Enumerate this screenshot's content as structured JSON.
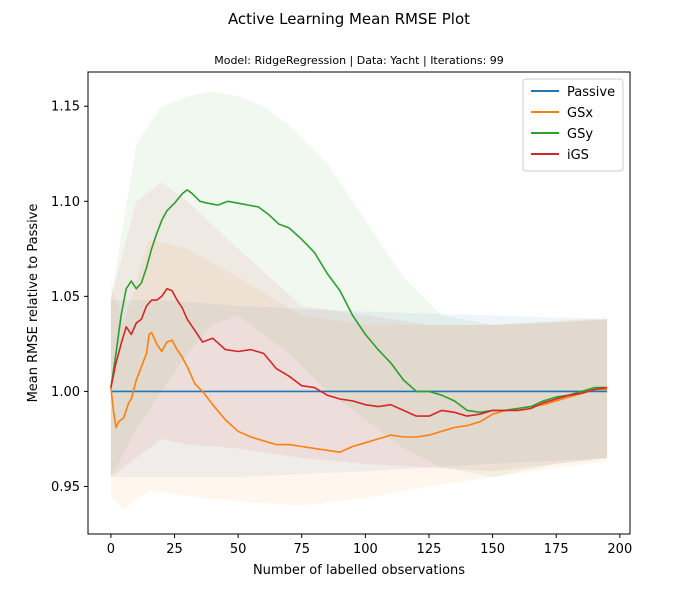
{
  "chart_data": {
    "type": "line",
    "title": "Active Learning Mean RMSE Plot",
    "subtitle": "Model: RidgeRegression |   Data: Yacht    |   Iterations: 99",
    "xlabel": "Number of labelled observations",
    "ylabel": "Mean RMSE relative to Passive",
    "xlim": [
      -9,
      204
    ],
    "ylim": [
      0.925,
      1.168
    ],
    "xticks": [
      0,
      25,
      50,
      75,
      100,
      125,
      150,
      175,
      200
    ],
    "yticks": [
      0.95,
      1.0,
      1.05,
      1.1,
      1.15
    ],
    "ytick_labels": [
      "0.95",
      "1.00",
      "1.05",
      "1.10",
      "1.15"
    ],
    "legend_position": "top-right",
    "grid": false,
    "series": [
      {
        "name": "Passive",
        "color": "#1f77b4",
        "x": [
          0,
          195
        ],
        "y": [
          1.0,
          1.0
        ],
        "band_x": [
          0,
          20,
          50,
          100,
          150,
          195
        ],
        "band_lower": [
          0.955,
          0.955,
          0.955,
          0.958,
          0.962,
          0.965
        ],
        "band_upper": [
          1.048,
          1.048,
          1.045,
          1.042,
          1.04,
          1.038
        ]
      },
      {
        "name": "GSx",
        "color": "#ff7f0e",
        "x": [
          0,
          1,
          2,
          3,
          5,
          7,
          8,
          10,
          12,
          14,
          15,
          16,
          18,
          20,
          22,
          24,
          26,
          28,
          30,
          33,
          36,
          40,
          45,
          50,
          55,
          60,
          65,
          70,
          75,
          80,
          85,
          90,
          95,
          100,
          105,
          110,
          115,
          120,
          125,
          130,
          135,
          140,
          145,
          150,
          155,
          160,
          165,
          170,
          175,
          180,
          185,
          190,
          195
        ],
        "y": [
          1.002,
          0.99,
          0.981,
          0.984,
          0.986,
          0.994,
          0.996,
          1.006,
          1.013,
          1.02,
          1.03,
          1.031,
          1.025,
          1.021,
          1.026,
          1.027,
          1.022,
          1.018,
          1.013,
          1.004,
          1.0,
          0.993,
          0.985,
          0.979,
          0.976,
          0.974,
          0.972,
          0.972,
          0.971,
          0.97,
          0.969,
          0.968,
          0.971,
          0.973,
          0.975,
          0.977,
          0.976,
          0.976,
          0.977,
          0.979,
          0.981,
          0.982,
          0.984,
          0.988,
          0.99,
          0.991,
          0.992,
          0.993,
          0.995,
          0.997,
          0.999,
          1.001,
          1.001
        ],
        "band_x": [
          0,
          5,
          15,
          30,
          50,
          75,
          100,
          125,
          150,
          175,
          195
        ],
        "band_lower": [
          0.945,
          0.938,
          0.948,
          0.945,
          0.942,
          0.94,
          0.944,
          0.95,
          0.955,
          0.96,
          0.963
        ],
        "band_upper": [
          1.058,
          1.035,
          1.08,
          1.075,
          1.06,
          1.04,
          1.035,
          1.035,
          1.035,
          1.037,
          1.039
        ]
      },
      {
        "name": "GSy",
        "color": "#2ca02c",
        "x": [
          0,
          2,
          4,
          6,
          8,
          10,
          12,
          14,
          16,
          18,
          20,
          22,
          25,
          28,
          30,
          32,
          35,
          38,
          42,
          46,
          50,
          54,
          58,
          62,
          66,
          70,
          75,
          80,
          85,
          90,
          95,
          100,
          105,
          110,
          115,
          120,
          125,
          130,
          135,
          140,
          145,
          150,
          155,
          160,
          165,
          170,
          175,
          180,
          185,
          190,
          195
        ],
        "y": [
          1.002,
          1.02,
          1.04,
          1.054,
          1.058,
          1.054,
          1.057,
          1.065,
          1.075,
          1.083,
          1.09,
          1.095,
          1.099,
          1.104,
          1.106,
          1.104,
          1.1,
          1.099,
          1.098,
          1.1,
          1.099,
          1.098,
          1.097,
          1.093,
          1.088,
          1.086,
          1.08,
          1.073,
          1.062,
          1.053,
          1.04,
          1.03,
          1.022,
          1.015,
          1.006,
          1.0,
          1.0,
          0.998,
          0.995,
          0.99,
          0.989,
          0.99,
          0.99,
          0.991,
          0.992,
          0.995,
          0.997,
          0.998,
          1.0,
          1.002,
          1.002
        ],
        "band_x": [
          0,
          10,
          20,
          30,
          40,
          50,
          60,
          70,
          85,
          100,
          115,
          130,
          150,
          175,
          195
        ],
        "band_lower": [
          0.955,
          0.98,
          1.0,
          1.02,
          1.035,
          1.04,
          1.03,
          1.02,
          1.0,
          0.985,
          0.97,
          0.96,
          0.955,
          0.962,
          0.965
        ],
        "band_upper": [
          1.048,
          1.13,
          1.15,
          1.155,
          1.158,
          1.155,
          1.15,
          1.14,
          1.12,
          1.09,
          1.06,
          1.04,
          1.035,
          1.037,
          1.038
        ]
      },
      {
        "name": "iGS",
        "color": "#d62728",
        "x": [
          0,
          2,
          4,
          6,
          8,
          10,
          12,
          14,
          16,
          18,
          20,
          22,
          24,
          26,
          28,
          30,
          33,
          36,
          40,
          45,
          50,
          55,
          60,
          65,
          70,
          75,
          80,
          85,
          90,
          95,
          100,
          105,
          110,
          115,
          120,
          125,
          130,
          135,
          140,
          145,
          150,
          155,
          160,
          165,
          170,
          175,
          180,
          185,
          190,
          195
        ],
        "y": [
          1.002,
          1.015,
          1.025,
          1.034,
          1.03,
          1.036,
          1.038,
          1.045,
          1.048,
          1.048,
          1.05,
          1.054,
          1.053,
          1.048,
          1.044,
          1.038,
          1.032,
          1.026,
          1.028,
          1.022,
          1.021,
          1.022,
          1.02,
          1.012,
          1.008,
          1.003,
          1.002,
          0.998,
          0.996,
          0.995,
          0.993,
          0.992,
          0.993,
          0.99,
          0.987,
          0.987,
          0.99,
          0.989,
          0.987,
          0.988,
          0.99,
          0.99,
          0.99,
          0.991,
          0.994,
          0.996,
          0.998,
          0.999,
          1.001,
          1.002
        ],
        "band_x": [
          0,
          10,
          20,
          30,
          50,
          75,
          100,
          125,
          150,
          175,
          195
        ],
        "band_lower": [
          0.955,
          0.965,
          0.975,
          0.972,
          0.97,
          0.965,
          0.962,
          0.96,
          0.958,
          0.962,
          0.965
        ],
        "band_upper": [
          1.048,
          1.1,
          1.11,
          1.1,
          1.075,
          1.045,
          1.04,
          1.035,
          1.035,
          1.036,
          1.038
        ]
      }
    ]
  }
}
